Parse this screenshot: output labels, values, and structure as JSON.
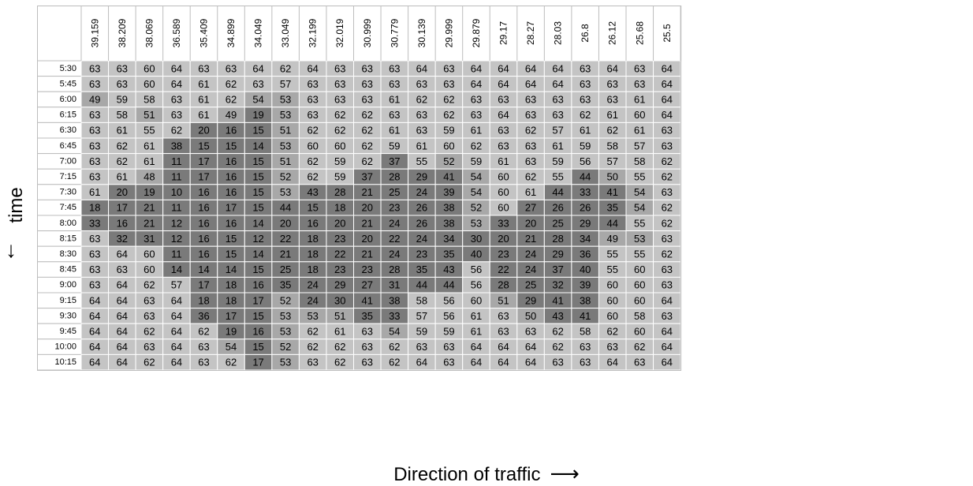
{
  "chart_data": {
    "type": "heatmap",
    "xlabel": "Direction of traffic",
    "ylabel": "time",
    "columns": [
      "39.159",
      "38.209",
      "38.069",
      "36.589",
      "35.409",
      "34.899",
      "34.049",
      "33.049",
      "32.199",
      "32.019",
      "30.999",
      "30.779",
      "30.139",
      "29.999",
      "29.879",
      "29.17",
      "28.27",
      "28.03",
      "26.8",
      "26.12",
      "25.68",
      "25.5"
    ],
    "rows": [
      "5:30",
      "5:45",
      "6:00",
      "6:15",
      "6:30",
      "6:45",
      "7:00",
      "7:15",
      "7:30",
      "7:45",
      "8:00",
      "8:15",
      "8:30",
      "8:45",
      "9:00",
      "9:15",
      "9:30",
      "9:45",
      "10:00",
      "10:15"
    ],
    "values": [
      [
        63,
        63,
        60,
        64,
        63,
        63,
        64,
        62,
        64,
        63,
        63,
        63,
        64,
        63,
        64,
        64,
        64,
        64,
        63,
        64,
        63,
        64
      ],
      [
        63,
        63,
        60,
        64,
        61,
        62,
        63,
        57,
        63,
        63,
        63,
        63,
        63,
        63,
        64,
        64,
        64,
        64,
        63,
        63,
        63,
        64
      ],
      [
        49,
        59,
        58,
        63,
        61,
        62,
        54,
        53,
        63,
        63,
        63,
        61,
        62,
        62,
        63,
        63,
        63,
        63,
        63,
        63,
        61,
        64
      ],
      [
        63,
        58,
        51,
        63,
        61,
        49,
        19,
        53,
        63,
        62,
        62,
        63,
        63,
        62,
        63,
        64,
        63,
        63,
        62,
        61,
        60,
        64
      ],
      [
        63,
        61,
        55,
        62,
        20,
        16,
        15,
        51,
        62,
        62,
        62,
        61,
        63,
        59,
        61,
        63,
        62,
        57,
        61,
        62,
        61,
        63
      ],
      [
        63,
        62,
        61,
        38,
        15,
        15,
        14,
        53,
        60,
        60,
        62,
        59,
        61,
        60,
        62,
        63,
        63,
        61,
        59,
        58,
        57,
        63
      ],
      [
        63,
        62,
        61,
        11,
        17,
        16,
        15,
        51,
        62,
        59,
        62,
        37,
        55,
        52,
        59,
        61,
        63,
        59,
        56,
        57,
        58,
        62
      ],
      [
        63,
        61,
        48,
        11,
        17,
        16,
        15,
        52,
        62,
        59,
        37,
        28,
        29,
        41,
        54,
        60,
        62,
        55,
        44,
        50,
        55,
        62
      ],
      [
        61,
        20,
        19,
        10,
        16,
        16,
        15,
        53,
        43,
        28,
        21,
        25,
        24,
        39,
        54,
        60,
        61,
        44,
        33,
        41,
        54,
        63
      ],
      [
        18,
        17,
        21,
        11,
        16,
        17,
        15,
        44,
        15,
        18,
        20,
        23,
        26,
        38,
        52,
        60,
        27,
        26,
        26,
        35,
        54,
        62
      ],
      [
        33,
        16,
        21,
        12,
        16,
        16,
        14,
        20,
        16,
        20,
        21,
        24,
        26,
        38,
        53,
        33,
        20,
        25,
        29,
        44,
        55,
        62
      ],
      [
        63,
        32,
        31,
        12,
        16,
        15,
        12,
        22,
        18,
        23,
        20,
        22,
        24,
        34,
        30,
        20,
        21,
        28,
        34,
        49,
        53,
        63
      ],
      [
        63,
        64,
        60,
        11,
        16,
        15,
        14,
        21,
        18,
        22,
        21,
        24,
        23,
        35,
        40,
        23,
        24,
        29,
        36,
        55,
        55,
        62
      ],
      [
        63,
        63,
        60,
        14,
        14,
        14,
        15,
        25,
        18,
        23,
        23,
        28,
        35,
        43,
        56,
        22,
        24,
        37,
        40,
        55,
        60,
        63
      ],
      [
        63,
        64,
        62,
        57,
        17,
        18,
        16,
        35,
        24,
        29,
        27,
        31,
        44,
        44,
        56,
        28,
        25,
        32,
        39,
        60,
        60,
        63
      ],
      [
        64,
        64,
        63,
        64,
        18,
        18,
        17,
        52,
        24,
        30,
        41,
        38,
        58,
        56,
        60,
        51,
        29,
        41,
        38,
        60,
        60,
        64
      ],
      [
        64,
        64,
        63,
        64,
        36,
        17,
        15,
        53,
        53,
        51,
        35,
        33,
        57,
        56,
        61,
        63,
        50,
        43,
        41,
        60,
        58,
        63
      ],
      [
        64,
        64,
        62,
        64,
        62,
        19,
        16,
        53,
        62,
        61,
        63,
        54,
        59,
        59,
        61,
        63,
        63,
        62,
        58,
        62,
        60,
        64
      ],
      [
        64,
        64,
        63,
        64,
        63,
        54,
        15,
        52,
        62,
        62,
        63,
        62,
        63,
        63,
        64,
        64,
        64,
        62,
        63,
        63,
        62,
        64
      ],
      [
        64,
        64,
        62,
        64,
        63,
        62,
        17,
        53,
        63,
        62,
        63,
        62,
        64,
        63,
        64,
        64,
        64,
        63,
        63,
        64,
        63,
        64
      ]
    ],
    "color_thresholds": [
      45,
      55
    ],
    "colors": {
      "low": "#7a7a7a",
      "mid": "#a8a8a8",
      "high": "#c4c4c4",
      "header_bg": "#ffffff",
      "grid": "#ffffff",
      "text": "#000000"
    }
  },
  "axis_arrows": {
    "down": "↓",
    "right": "⟶"
  }
}
